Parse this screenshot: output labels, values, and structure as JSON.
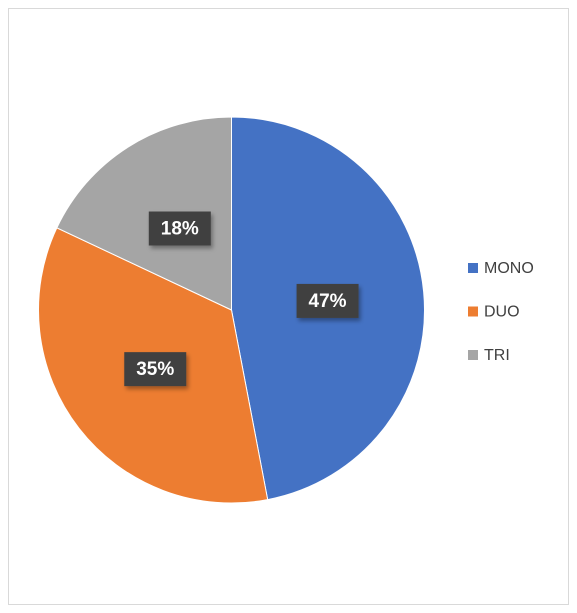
{
  "chart_data": {
    "type": "pie",
    "categories": [
      "MONO",
      "DUO",
      "TRI"
    ],
    "values": [
      47,
      35,
      18
    ],
    "value_labels": [
      "47%",
      "35%",
      "18%"
    ],
    "colors": [
      "#4472c4",
      "#ed7d31",
      "#a5a5a5"
    ],
    "legend": "right"
  }
}
